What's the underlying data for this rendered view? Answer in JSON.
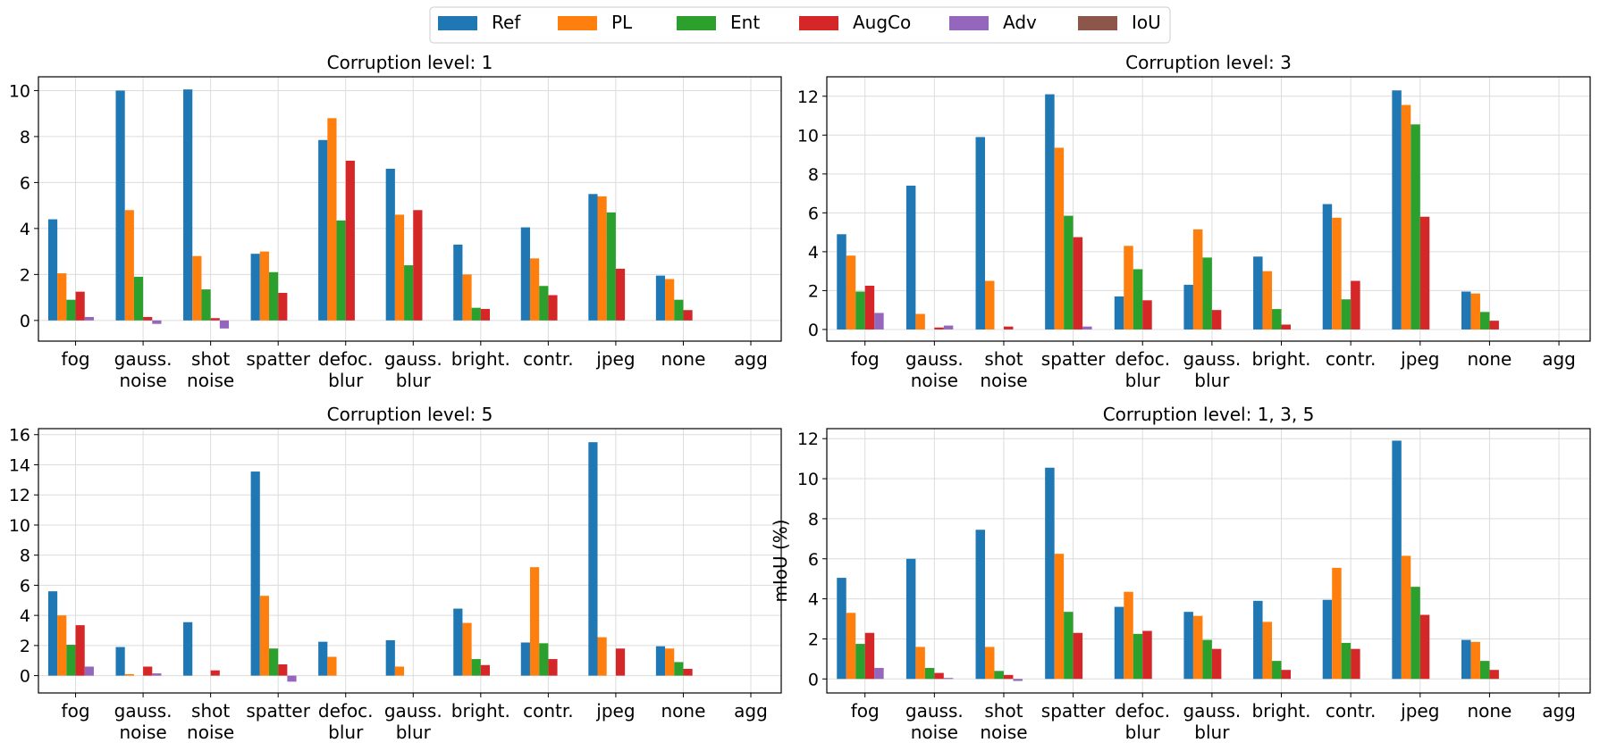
{
  "legend": [
    {
      "name": "Ref",
      "color": "#1f77b4"
    },
    {
      "name": "PL",
      "color": "#ff7f0e"
    },
    {
      "name": "Ent",
      "color": "#2ca02c"
    },
    {
      "name": "AugCo",
      "color": "#d62728"
    },
    {
      "name": "Adv",
      "color": "#9467bd"
    },
    {
      "name": "IoU",
      "color": "#8c564b"
    }
  ],
  "chart_data": [
    {
      "type": "bar",
      "title": "Corruption level: 1",
      "xlabel": "",
      "ylabel": "",
      "ylim": [
        -0.9,
        10.6
      ],
      "yticks": [
        0,
        2,
        4,
        6,
        8,
        10
      ],
      "categories": [
        [
          "fog"
        ],
        [
          "gauss.",
          "noise"
        ],
        [
          "shot",
          "noise"
        ],
        [
          "spatter"
        ],
        [
          "defoc.",
          "blur"
        ],
        [
          "gauss.",
          "blur"
        ],
        [
          "bright."
        ],
        [
          "contr."
        ],
        [
          "jpeg"
        ],
        [
          "none"
        ],
        [
          "agg"
        ]
      ],
      "series": [
        {
          "name": "Ref",
          "values": [
            4.4,
            10.0,
            10.05,
            2.9,
            7.85,
            6.6,
            3.3,
            4.05,
            5.5,
            1.95,
            0
          ]
        },
        {
          "name": "PL",
          "values": [
            2.05,
            4.8,
            2.8,
            3.0,
            8.8,
            4.6,
            2.0,
            2.7,
            5.4,
            1.8,
            0
          ]
        },
        {
          "name": "Ent",
          "values": [
            0.9,
            1.9,
            1.35,
            2.1,
            4.35,
            2.4,
            0.55,
            1.5,
            4.7,
            0.9,
            0
          ]
        },
        {
          "name": "AugCo",
          "values": [
            1.25,
            0.15,
            0.1,
            1.2,
            6.95,
            4.8,
            0.5,
            1.1,
            2.25,
            0.45,
            0
          ]
        },
        {
          "name": "Adv",
          "values": [
            0.15,
            -0.15,
            -0.35,
            0,
            0,
            0,
            0,
            0,
            0,
            0,
            0
          ]
        },
        {
          "name": "IoU",
          "values": [
            0,
            0,
            0,
            0,
            0,
            0,
            0,
            0,
            0,
            0,
            0
          ]
        }
      ]
    },
    {
      "type": "bar",
      "title": "Corruption level: 3",
      "xlabel": "",
      "ylabel": "",
      "ylim": [
        -0.6,
        13.0
      ],
      "yticks": [
        0,
        2,
        4,
        6,
        8,
        10,
        12
      ],
      "categories": [
        [
          "fog"
        ],
        [
          "gauss.",
          "noise"
        ],
        [
          "shot",
          "noise"
        ],
        [
          "spatter"
        ],
        [
          "defoc.",
          "blur"
        ],
        [
          "gauss.",
          "blur"
        ],
        [
          "bright."
        ],
        [
          "contr."
        ],
        [
          "jpeg"
        ],
        [
          "none"
        ],
        [
          "agg"
        ]
      ],
      "series": [
        {
          "name": "Ref",
          "values": [
            4.9,
            7.4,
            9.9,
            12.1,
            1.7,
            2.3,
            3.75,
            6.45,
            12.3,
            1.95,
            0
          ]
        },
        {
          "name": "PL",
          "values": [
            3.8,
            0.8,
            2.5,
            9.35,
            4.3,
            5.15,
            3.0,
            5.75,
            11.55,
            1.85,
            0
          ]
        },
        {
          "name": "Ent",
          "values": [
            1.95,
            0,
            0,
            5.85,
            3.1,
            3.7,
            1.05,
            1.55,
            10.55,
            0.9,
            0
          ]
        },
        {
          "name": "AugCo",
          "values": [
            2.25,
            0.1,
            0.15,
            4.75,
            1.5,
            1.0,
            0.25,
            2.5,
            5.8,
            0.45,
            0
          ]
        },
        {
          "name": "Adv",
          "values": [
            0.85,
            0.2,
            0,
            0.15,
            0,
            0,
            0,
            0,
            0,
            0,
            0
          ]
        },
        {
          "name": "IoU",
          "values": [
            0,
            0,
            0,
            0,
            0,
            0,
            0,
            0,
            0,
            0,
            0
          ]
        }
      ]
    },
    {
      "type": "bar",
      "title": "Corruption level: 5",
      "xlabel": "",
      "ylabel": "",
      "ylim": [
        -1.15,
        16.4
      ],
      "yticks": [
        0,
        2,
        4,
        6,
        8,
        10,
        12,
        14,
        16
      ],
      "categories": [
        [
          "fog"
        ],
        [
          "gauss.",
          "noise"
        ],
        [
          "shot",
          "noise"
        ],
        [
          "spatter"
        ],
        [
          "defoc.",
          "blur"
        ],
        [
          "gauss.",
          "blur"
        ],
        [
          "bright."
        ],
        [
          "contr."
        ],
        [
          "jpeg"
        ],
        [
          "none"
        ],
        [
          "agg"
        ]
      ],
      "series": [
        {
          "name": "Ref",
          "values": [
            5.6,
            1.9,
            3.55,
            13.55,
            2.25,
            2.35,
            4.45,
            2.2,
            15.5,
            1.95,
            0
          ]
        },
        {
          "name": "PL",
          "values": [
            4.0,
            0.1,
            0,
            5.3,
            1.25,
            0.6,
            3.5,
            7.2,
            2.55,
            1.8,
            0
          ]
        },
        {
          "name": "Ent",
          "values": [
            2.05,
            0,
            0,
            1.8,
            0,
            0,
            1.1,
            2.15,
            0,
            0.9,
            0
          ]
        },
        {
          "name": "AugCo",
          "values": [
            3.35,
            0.6,
            0.35,
            0.75,
            0,
            0,
            0.7,
            1.1,
            1.8,
            0.45,
            0
          ]
        },
        {
          "name": "Adv",
          "values": [
            0.6,
            0.15,
            0,
            -0.4,
            0,
            0,
            0,
            0,
            0,
            0,
            0
          ]
        },
        {
          "name": "IoU",
          "values": [
            0,
            0,
            0,
            0,
            0,
            0,
            0,
            0,
            0,
            0,
            0
          ]
        }
      ]
    },
    {
      "type": "bar",
      "title": "Corruption level: 1, 3, 5",
      "xlabel": "",
      "ylabel": "mIoU (%)",
      "ylim": [
        -0.7,
        12.5
      ],
      "yticks": [
        0,
        2,
        4,
        6,
        8,
        10,
        12
      ],
      "categories": [
        [
          "fog"
        ],
        [
          "gauss.",
          "noise"
        ],
        [
          "shot",
          "noise"
        ],
        [
          "spatter"
        ],
        [
          "defoc.",
          "blur"
        ],
        [
          "gauss.",
          "blur"
        ],
        [
          "bright."
        ],
        [
          "contr."
        ],
        [
          "jpeg"
        ],
        [
          "none"
        ],
        [
          "agg"
        ]
      ],
      "series": [
        {
          "name": "Ref",
          "values": [
            5.05,
            6.0,
            7.45,
            10.55,
            3.6,
            3.35,
            3.9,
            3.95,
            11.9,
            1.95,
            0
          ]
        },
        {
          "name": "PL",
          "values": [
            3.3,
            1.6,
            1.6,
            6.25,
            4.35,
            3.15,
            2.85,
            5.55,
            6.15,
            1.85,
            0
          ]
        },
        {
          "name": "Ent",
          "values": [
            1.75,
            0.55,
            0.4,
            3.35,
            2.25,
            1.95,
            0.9,
            1.8,
            4.6,
            0.9,
            0
          ]
        },
        {
          "name": "AugCo",
          "values": [
            2.3,
            0.3,
            0.2,
            2.3,
            2.4,
            1.5,
            0.45,
            1.5,
            3.2,
            0.45,
            0
          ]
        },
        {
          "name": "Adv",
          "values": [
            0.55,
            0.05,
            -0.1,
            0,
            0,
            0,
            0,
            0,
            0,
            0,
            0
          ]
        },
        {
          "name": "IoU",
          "values": [
            0,
            0,
            0,
            0,
            0,
            0,
            0,
            0,
            0,
            0,
            0
          ]
        }
      ]
    }
  ]
}
